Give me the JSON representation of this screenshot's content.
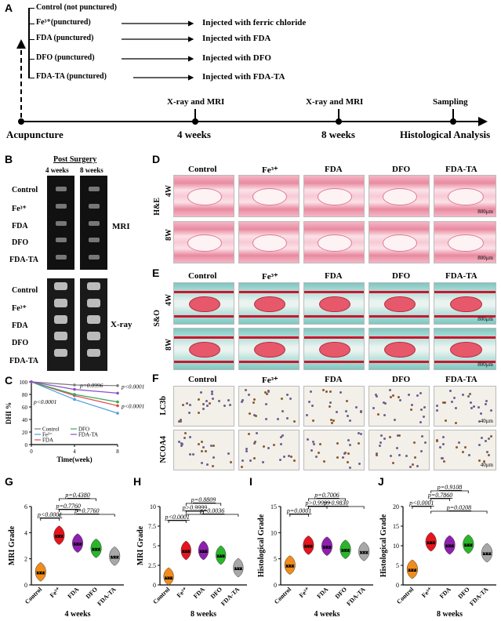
{
  "panel_letters": {
    "a": "A",
    "b": "B",
    "c": "C",
    "d": "D",
    "e": "E",
    "f": "F",
    "g": "G",
    "h": "H",
    "i": "I",
    "j": "J"
  },
  "panel_a": {
    "groups": [
      "Control (not punctured)",
      "Fe³⁺(punctured)",
      "FDA (punctured)",
      "DFO (punctured)",
      "FDA-TA (punctured)"
    ],
    "injections": [
      "Injected with ferric chloride",
      "Injected with FDA",
      "Injected with DFO",
      "Injected with FDA-TA"
    ],
    "timeline": [
      "Acupuncture",
      "4 weeks",
      "8 weeks",
      "Histological Analysis"
    ],
    "events": [
      "X-ray and MRI",
      "X-ray and MRI",
      "Sampling"
    ]
  },
  "panel_b": {
    "title": "Post Surgery",
    "cols": [
      "4 weeks",
      "8 weeks"
    ],
    "rows": [
      "Control",
      "Fe³⁺",
      "FDA",
      "DFO",
      "FDA-TA"
    ],
    "mri_label": "MRI",
    "xray_label": "X-ray"
  },
  "panel_d": {
    "cols": [
      "Control",
      "Fe³⁺",
      "FDA",
      "DFO",
      "FDA-TA"
    ],
    "stain": "H&E",
    "rows": [
      "4W",
      "8W"
    ],
    "scale": "800μm"
  },
  "panel_e": {
    "cols": [
      "Control",
      "Fe³⁺",
      "FDA",
      "DFO",
      "FDA-TA"
    ],
    "stain": "S&O",
    "rows": [
      "4W",
      "8W"
    ],
    "scale": "800μm"
  },
  "panel_f": {
    "cols": [
      "Control",
      "Fe³⁺",
      "FDA",
      "DFO",
      "FDA-TA"
    ],
    "rows": [
      "LC3b",
      "NCOA4"
    ],
    "scale": "40μm"
  },
  "chart_data": [
    {
      "id": "C",
      "type": "line",
      "ylabel": "DHI %",
      "xlabel": "Time(week)",
      "x": [
        0,
        4,
        8
      ],
      "ylim": [
        0,
        100
      ],
      "yticks": [
        0,
        20,
        40,
        60,
        80,
        100
      ],
      "xticks": [
        0,
        4,
        8
      ],
      "series": [
        {
          "name": "Control",
          "color": "#7a7a7a",
          "values": [
            100,
            95,
            94
          ]
        },
        {
          "name": "Fe³⁺",
          "color": "#4a9de0",
          "values": [
            100,
            72,
            50
          ]
        },
        {
          "name": "FDA",
          "color": "#e0464a",
          "values": [
            100,
            78,
            62
          ]
        },
        {
          "name": "DFO",
          "color": "#3aa655",
          "values": [
            100,
            80,
            68
          ]
        },
        {
          "name": "FDA-TA",
          "color": "#8a4fc7",
          "values": [
            100,
            88,
            82
          ]
        }
      ],
      "annotations": [
        "p=0.0996",
        "p<0.0001",
        "p<0.0001",
        "p<0.0001"
      ]
    },
    {
      "id": "G",
      "type": "violin",
      "ylabel": "MRI Grade",
      "xlabel": "4 weeks",
      "categories": [
        "Control",
        "Fe³⁺",
        "FDA",
        "DFO",
        "FDA-TA"
      ],
      "colors": [
        "#f08c1c",
        "#e6141c",
        "#8e1fb0",
        "#2ab52a",
        "#a8a8a8"
      ],
      "values": [
        1.0,
        3.8,
        3.2,
        2.8,
        2.2
      ],
      "ylim": [
        0,
        6
      ],
      "yticks": [
        0,
        2,
        4,
        6
      ],
      "annotations": [
        "p<0.0001",
        "p=0.7760",
        "p=0.4380",
        "p=0.7760"
      ]
    },
    {
      "id": "H",
      "type": "violin",
      "ylabel": "MRI Grade",
      "xlabel": "8 weeks",
      "categories": [
        "Control",
        "Fe³⁺",
        "FDA",
        "DFO",
        "FDA-TA"
      ],
      "colors": [
        "#f08c1c",
        "#e6141c",
        "#8e1fb0",
        "#2ab52a",
        "#a8a8a8"
      ],
      "values": [
        1.0,
        4.4,
        4.4,
        3.8,
        2.2
      ],
      "ylim": [
        0,
        10
      ],
      "yticks": [
        0.0,
        2.5,
        5.0,
        7.5,
        10.0
      ],
      "annotations": [
        "p<0.0001",
        "p>0.9999",
        "p=0.8809",
        "p=0.0036"
      ]
    },
    {
      "id": "I",
      "type": "violin",
      "ylabel": "Histological Grade",
      "xlabel": "4 weeks",
      "categories": [
        "Control",
        "Fe³⁺",
        "FDA",
        "DFO",
        "FDA-TA"
      ],
      "colors": [
        "#f08c1c",
        "#e6141c",
        "#8e1fb0",
        "#2ab52a",
        "#a8a8a8"
      ],
      "values": [
        3.8,
        7.6,
        7.4,
        6.8,
        6.4
      ],
      "ylim": [
        0,
        15
      ],
      "yticks": [
        0,
        5,
        10,
        15
      ],
      "annotations": [
        "p=0.0001",
        "p>0.9999",
        "p=0.7006",
        "p=0.9830"
      ]
    },
    {
      "id": "J",
      "type": "violin",
      "ylabel": "Histological Grade",
      "xlabel": "8 weeks",
      "categories": [
        "Control",
        "Fe³⁺",
        "FDA",
        "DFO",
        "FDA-TA"
      ],
      "colors": [
        "#f08c1c",
        "#e6141c",
        "#8e1fb0",
        "#2ab52a",
        "#a8a8a8"
      ],
      "values": [
        4.0,
        11.0,
        10.2,
        10.4,
        8.2
      ],
      "ylim": [
        0,
        20
      ],
      "yticks": [
        0,
        5,
        10,
        15,
        20
      ],
      "annotations": [
        "p<0.0001",
        "p=0.7860",
        "p=0.9108",
        "p=0.0208"
      ]
    }
  ]
}
